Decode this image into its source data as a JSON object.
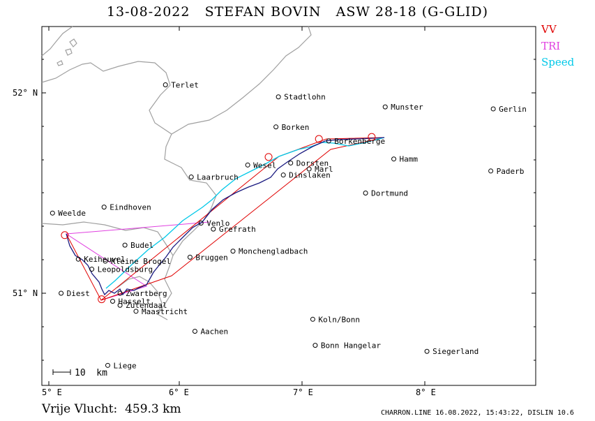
{
  "title": "13-08-2022   STEFAN BOVIN   ASW 28-18 (G-GLID)",
  "legend": [
    {
      "label": "VV",
      "color": "#e00000"
    },
    {
      "label": "TRI",
      "color": "#e040e0"
    },
    {
      "label": "Speed",
      "color": "#00c8e8"
    }
  ],
  "axes": {
    "lat_labels": [
      {
        "lat": 52,
        "text": "52° N"
      },
      {
        "lat": 51,
        "text": "51° N"
      }
    ],
    "lon_labels": [
      {
        "lon": 5,
        "text": "5° E"
      },
      {
        "lon": 6,
        "text": "6° E"
      },
      {
        "lon": 7,
        "text": "7° E"
      },
      {
        "lon": 8,
        "text": "8° E"
      }
    ]
  },
  "scale_bar": "10  km",
  "places": [
    {
      "name": "Terlet",
      "lon": 5.95,
      "lat": 52.04
    },
    {
      "name": "Stadtlohn",
      "lon": 6.87,
      "lat": 51.98
    },
    {
      "name": "Munster",
      "lon": 7.74,
      "lat": 51.93
    },
    {
      "name": "Gerlin",
      "lon": 8.62,
      "lat": 51.92
    },
    {
      "name": "Borken",
      "lon": 6.85,
      "lat": 51.83
    },
    {
      "name": "Borkenberge",
      "lon": 7.28,
      "lat": 51.76
    },
    {
      "name": "Hamm",
      "lon": 7.81,
      "lat": 51.67
    },
    {
      "name": "Wesel",
      "lon": 6.62,
      "lat": 51.64
    },
    {
      "name": "Dorsten",
      "lon": 6.97,
      "lat": 51.65
    },
    {
      "name": "Marl",
      "lon": 7.12,
      "lat": 51.62
    },
    {
      "name": "Dinslaken",
      "lon": 6.91,
      "lat": 51.59
    },
    {
      "name": "Laarbruch",
      "lon": 6.16,
      "lat": 51.58
    },
    {
      "name": "Paderb",
      "lon": 8.6,
      "lat": 51.61
    },
    {
      "name": "Dortmund",
      "lon": 7.58,
      "lat": 51.5
    },
    {
      "name": "Eindhoven",
      "lon": 5.45,
      "lat": 51.43
    },
    {
      "name": "Weelde",
      "lon": 5.03,
      "lat": 51.4
    },
    {
      "name": "Venlo",
      "lon": 6.24,
      "lat": 51.35
    },
    {
      "name": "Grefrath",
      "lon": 6.34,
      "lat": 51.32
    },
    {
      "name": "Budel",
      "lon": 5.62,
      "lat": 51.24
    },
    {
      "name": "Monchengladbach",
      "lon": 6.5,
      "lat": 51.21
    },
    {
      "name": "Bruggen",
      "lon": 6.15,
      "lat": 51.18
    },
    {
      "name": "Keiheuvel",
      "lon": 5.24,
      "lat": 51.17
    },
    {
      "name": "Kleine Brogel",
      "lon": 5.46,
      "lat": 51.16
    },
    {
      "name": "Leopoldsburg",
      "lon": 5.35,
      "lat": 51.12
    },
    {
      "name": "Diest",
      "lon": 5.1,
      "lat": 51.0
    },
    {
      "name": "Zwartberg",
      "lon": 5.58,
      "lat": 51.0
    },
    {
      "name": "Hasselt",
      "lon": 5.52,
      "lat": 50.96
    },
    {
      "name": "Zutendaal",
      "lon": 5.58,
      "lat": 50.94
    },
    {
      "name": "Maastricht",
      "lon": 5.71,
      "lat": 50.91
    },
    {
      "name": "Koln/Bonn",
      "lon": 7.15,
      "lat": 50.87
    },
    {
      "name": "Aachen",
      "lon": 6.19,
      "lat": 50.81
    },
    {
      "name": "Bonn Hangelar",
      "lon": 7.17,
      "lat": 50.74
    },
    {
      "name": "Siegerland",
      "lon": 8.08,
      "lat": 50.71
    },
    {
      "name": "Liege",
      "lon": 5.48,
      "lat": 50.64
    }
  ],
  "turnpoints": [
    {
      "lon": 5.13,
      "lat": 51.29
    },
    {
      "lon": 5.43,
      "lat": 50.97
    },
    {
      "lon": 6.79,
      "lat": 51.68
    },
    {
      "lon": 7.2,
      "lat": 51.77
    },
    {
      "lon": 7.63,
      "lat": 51.78
    }
  ],
  "footer": {
    "distance": "Vrije Vlucht:  459.3 km",
    "meta": "CHARRON.LINE 16.08.2022, 15:43:22, DISLIN 10.6"
  }
}
